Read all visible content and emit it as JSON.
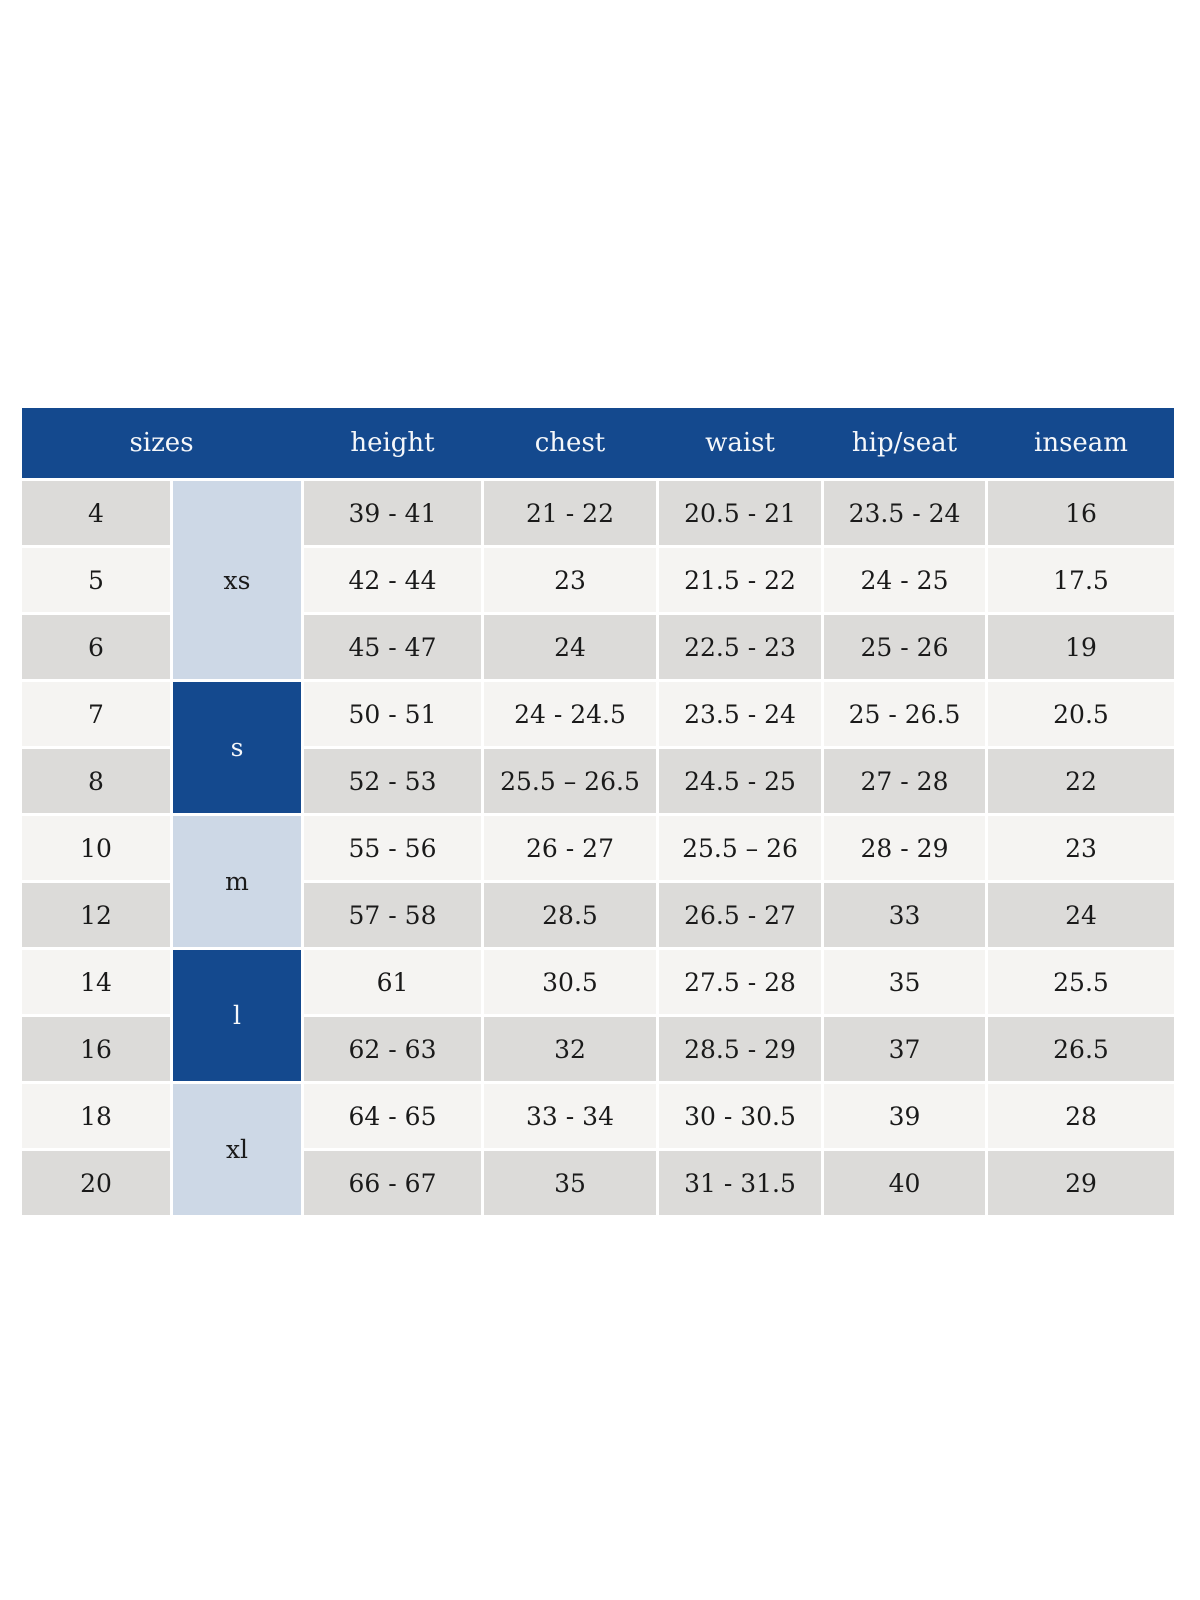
{
  "colors": {
    "header_bg": "#14498e",
    "header_text": "#f5f7fa",
    "group_light": "#cdd8e6",
    "group_dark": "#14498e",
    "row_a": "#dcdbd9",
    "row_b": "#f5f4f2",
    "cell_text": "#1a1a1a",
    "page_bg": "#ffffff"
  },
  "chart_data": {
    "type": "table",
    "columns": [
      "sizes",
      "height",
      "chest",
      "waist",
      "hip/seat",
      "inseam"
    ],
    "size_groups": [
      {
        "label": "xs",
        "rows": 3,
        "variant": "light"
      },
      {
        "label": "s",
        "rows": 2,
        "variant": "dark"
      },
      {
        "label": "m",
        "rows": 2,
        "variant": "light"
      },
      {
        "label": "l",
        "rows": 2,
        "variant": "dark"
      },
      {
        "label": "xl",
        "rows": 2,
        "variant": "light"
      }
    ],
    "rows": [
      {
        "size": "4",
        "height": "39 - 41",
        "chest": "21 - 22",
        "waist": "20.5 - 21",
        "hip_seat": "23.5 - 24",
        "inseam": "16"
      },
      {
        "size": "5",
        "height": "42 - 44",
        "chest": "23",
        "waist": "21.5 - 22",
        "hip_seat": "24 - 25",
        "inseam": "17.5"
      },
      {
        "size": "6",
        "height": "45 - 47",
        "chest": "24",
        "waist": "22.5 - 23",
        "hip_seat": "25 - 26",
        "inseam": "19"
      },
      {
        "size": "7",
        "height": "50 - 51",
        "chest": "24 - 24.5",
        "waist": "23.5 - 24",
        "hip_seat": "25 - 26.5",
        "inseam": "20.5"
      },
      {
        "size": "8",
        "height": "52 - 53",
        "chest": "25.5 – 26.5",
        "waist": "24.5 - 25",
        "hip_seat": "27 - 28",
        "inseam": "22"
      },
      {
        "size": "10",
        "height": "55 - 56",
        "chest": "26 - 27",
        "waist": "25.5 – 26",
        "hip_seat": "28 - 29",
        "inseam": "23"
      },
      {
        "size": "12",
        "height": "57 - 58",
        "chest": "28.5",
        "waist": "26.5 - 27",
        "hip_seat": "33",
        "inseam": "24"
      },
      {
        "size": "14",
        "height": "61",
        "chest": "30.5",
        "waist": "27.5 - 28",
        "hip_seat": "35",
        "inseam": "25.5"
      },
      {
        "size": "16",
        "height": "62 - 63",
        "chest": "32",
        "waist": "28.5 - 29",
        "hip_seat": "37",
        "inseam": "26.5"
      },
      {
        "size": "18",
        "height": "64 - 65",
        "chest": "33 - 34",
        "waist": "30 - 30.5",
        "hip_seat": "39",
        "inseam": "28"
      },
      {
        "size": "20",
        "height": "66 - 67",
        "chest": "35",
        "waist": "31 - 31.5",
        "hip_seat": "40",
        "inseam": "29"
      }
    ]
  }
}
